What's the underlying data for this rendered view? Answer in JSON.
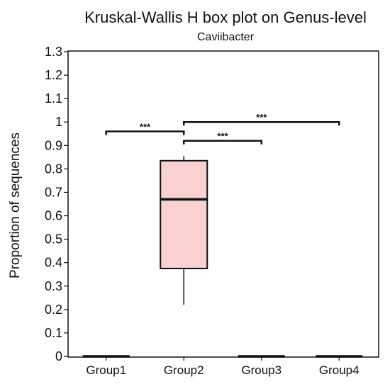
{
  "chart_data": {
    "type": "box",
    "title": "Kruskal-Wallis H box plot on Genus-level",
    "subtitle": "Caviibacter",
    "xlabel": "",
    "ylabel": "Proportion of sequences",
    "ylim": [
      0,
      1.3
    ],
    "yticks": [
      "0",
      "0.1",
      "0.2",
      "0.3",
      "0.4",
      "0.5",
      "0.6",
      "0.7",
      "0.8",
      "0.9",
      "1",
      "1.1",
      "1.2",
      "1.3"
    ],
    "categories": [
      "Group1",
      "Group2",
      "Group3",
      "Group4"
    ],
    "boxes": [
      {
        "category": "Group1",
        "min": 0,
        "q1": 0,
        "median": 0,
        "q3": 0,
        "max": 0
      },
      {
        "category": "Group2",
        "min": 0.22,
        "q1": 0.375,
        "median": 0.67,
        "q3": 0.835,
        "max": 0.855
      },
      {
        "category": "Group3",
        "min": 0,
        "q1": 0,
        "median": 0,
        "q3": 0,
        "max": 0
      },
      {
        "category": "Group4",
        "min": 0,
        "q1": 0,
        "median": 0,
        "q3": 0,
        "max": 0
      }
    ],
    "box_color": "#f8d1d0",
    "significance": [
      {
        "from": "Group1",
        "to": "Group2",
        "y": 0.96,
        "label": "***"
      },
      {
        "from": "Group2",
        "to": "Group3",
        "y": 0.92,
        "label": "***"
      },
      {
        "from": "Group2",
        "to": "Group4",
        "y": 1.0,
        "label": "***"
      }
    ],
    "grid": false
  }
}
